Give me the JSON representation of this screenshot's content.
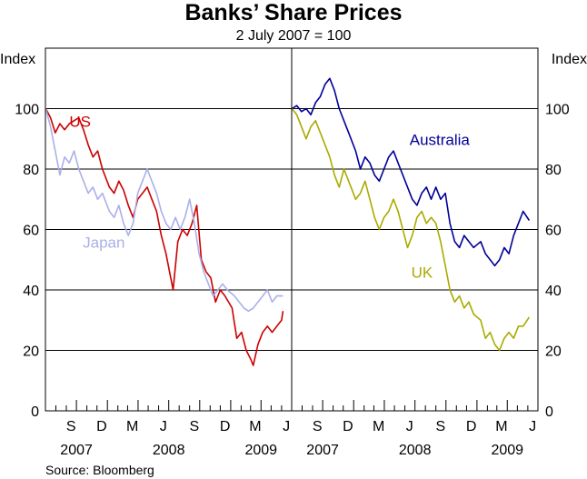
{
  "chart_data": {
    "type": "line",
    "title": "Banks’ Share Prices",
    "subtitle": "2 July 2007 = 100",
    "yaxis_label_left": "Index",
    "yaxis_label_right": "Index",
    "ylim": [
      0,
      120
    ],
    "yticks": [
      0,
      20,
      40,
      60,
      80,
      100
    ],
    "grid": true,
    "source": "Source: Bloomberg",
    "xlim": [
      "2007-07-01",
      "2009-07-01"
    ],
    "month_labels": [
      {
        "label": "S",
        "date": "2007-09-15"
      },
      {
        "label": "D",
        "date": "2007-12-15"
      },
      {
        "label": "M",
        "date": "2008-03-15"
      },
      {
        "label": "J",
        "date": "2008-06-15"
      },
      {
        "label": "S",
        "date": "2008-09-15"
      },
      {
        "label": "D",
        "date": "2008-12-15"
      },
      {
        "label": "M",
        "date": "2009-03-15"
      },
      {
        "label": "J",
        "date": "2009-06-15"
      }
    ],
    "year_labels": [
      {
        "label": "2007",
        "date": "2007-10-01"
      },
      {
        "label": "2008",
        "date": "2008-07-01"
      },
      {
        "label": "2009",
        "date": "2009-04-01"
      }
    ],
    "panels": [
      {
        "series": [
          {
            "name": "US",
            "color": "#cc0000",
            "label_anchor": {
              "date": "2007-09-10",
              "value": 94
            },
            "points": [
              [
                "2007-07-02",
                100
              ],
              [
                "2007-07-16",
                97
              ],
              [
                "2007-07-30",
                92
              ],
              [
                "2007-08-13",
                95
              ],
              [
                "2007-08-27",
                93
              ],
              [
                "2007-09-10",
                95
              ],
              [
                "2007-09-24",
                96
              ],
              [
                "2007-10-08",
                97
              ],
              [
                "2007-10-22",
                93
              ],
              [
                "2007-11-05",
                88
              ],
              [
                "2007-11-19",
                84
              ],
              [
                "2007-12-03",
                86
              ],
              [
                "2007-12-17",
                80
              ],
              [
                "2008-01-07",
                74
              ],
              [
                "2008-01-21",
                72
              ],
              [
                "2008-02-04",
                76
              ],
              [
                "2008-02-18",
                73
              ],
              [
                "2008-03-03",
                68
              ],
              [
                "2008-03-17",
                64
              ],
              [
                "2008-03-31",
                70
              ],
              [
                "2008-04-14",
                72
              ],
              [
                "2008-04-28",
                74
              ],
              [
                "2008-05-12",
                70
              ],
              [
                "2008-05-26",
                66
              ],
              [
                "2008-06-09",
                58
              ],
              [
                "2008-06-23",
                52
              ],
              [
                "2008-07-07",
                44
              ],
              [
                "2008-07-14",
                40
              ],
              [
                "2008-07-28",
                56
              ],
              [
                "2008-08-11",
                60
              ],
              [
                "2008-08-25",
                58
              ],
              [
                "2008-09-08",
                62
              ],
              [
                "2008-09-22",
                68
              ],
              [
                "2008-10-06",
                50
              ],
              [
                "2008-10-20",
                46
              ],
              [
                "2008-11-03",
                44
              ],
              [
                "2008-11-17",
                36
              ],
              [
                "2008-12-01",
                40
              ],
              [
                "2008-12-15",
                38
              ],
              [
                "2009-01-05",
                34
              ],
              [
                "2009-01-19",
                24
              ],
              [
                "2009-02-02",
                26
              ],
              [
                "2009-02-16",
                20
              ],
              [
                "2009-03-02",
                17
              ],
              [
                "2009-03-09",
                15
              ],
              [
                "2009-03-23",
                22
              ],
              [
                "2009-04-06",
                26
              ],
              [
                "2009-04-20",
                28
              ],
              [
                "2009-05-04",
                26
              ],
              [
                "2009-05-18",
                28
              ],
              [
                "2009-06-01",
                30
              ],
              [
                "2009-06-05",
                33
              ]
            ]
          },
          {
            "name": "Japan",
            "color": "#aab0e8",
            "label_anchor": {
              "date": "2007-10-20",
              "value": 54
            },
            "points": [
              [
                "2007-07-02",
                100
              ],
              [
                "2007-07-16",
                94
              ],
              [
                "2007-07-30",
                86
              ],
              [
                "2007-08-13",
                78
              ],
              [
                "2007-08-27",
                84
              ],
              [
                "2007-09-10",
                82
              ],
              [
                "2007-09-24",
                86
              ],
              [
                "2007-10-08",
                80
              ],
              [
                "2007-10-22",
                76
              ],
              [
                "2007-11-05",
                72
              ],
              [
                "2007-11-19",
                74
              ],
              [
                "2007-12-03",
                70
              ],
              [
                "2007-12-17",
                72
              ],
              [
                "2008-01-07",
                66
              ],
              [
                "2008-01-21",
                64
              ],
              [
                "2008-02-04",
                68
              ],
              [
                "2008-02-18",
                62
              ],
              [
                "2008-03-03",
                58
              ],
              [
                "2008-03-17",
                62
              ],
              [
                "2008-03-31",
                72
              ],
              [
                "2008-04-14",
                76
              ],
              [
                "2008-04-28",
                80
              ],
              [
                "2008-05-12",
                76
              ],
              [
                "2008-05-26",
                72
              ],
              [
                "2008-06-09",
                66
              ],
              [
                "2008-06-23",
                62
              ],
              [
                "2008-07-07",
                60
              ],
              [
                "2008-07-21",
                64
              ],
              [
                "2008-08-04",
                60
              ],
              [
                "2008-08-18",
                64
              ],
              [
                "2008-09-01",
                70
              ],
              [
                "2008-09-15",
                62
              ],
              [
                "2008-09-29",
                52
              ],
              [
                "2008-10-13",
                46
              ],
              [
                "2008-10-27",
                42
              ],
              [
                "2008-11-10",
                38
              ],
              [
                "2008-11-24",
                40
              ],
              [
                "2008-12-08",
                42
              ],
              [
                "2008-12-22",
                40
              ],
              [
                "2009-01-12",
                38
              ],
              [
                "2009-01-26",
                36
              ],
              [
                "2009-02-09",
                34
              ],
              [
                "2009-02-23",
                33
              ],
              [
                "2009-03-09",
                34
              ],
              [
                "2009-03-23",
                36
              ],
              [
                "2009-04-06",
                38
              ],
              [
                "2009-04-20",
                40
              ],
              [
                "2009-05-04",
                36
              ],
              [
                "2009-05-18",
                38
              ],
              [
                "2009-06-05",
                38
              ]
            ]
          }
        ]
      },
      {
        "series": [
          {
            "name": "Australia",
            "color": "#000099",
            "label_anchor": {
              "date": "2008-06-15",
              "value": 88
            },
            "points": [
              [
                "2007-07-02",
                100
              ],
              [
                "2007-07-16",
                101
              ],
              [
                "2007-07-30",
                99
              ],
              [
                "2007-08-13",
                100
              ],
              [
                "2007-08-27",
                98
              ],
              [
                "2007-09-10",
                102
              ],
              [
                "2007-09-24",
                104
              ],
              [
                "2007-10-08",
                108
              ],
              [
                "2007-10-22",
                110
              ],
              [
                "2007-11-05",
                106
              ],
              [
                "2007-11-19",
                100
              ],
              [
                "2007-12-03",
                96
              ],
              [
                "2007-12-17",
                92
              ],
              [
                "2008-01-07",
                86
              ],
              [
                "2008-01-21",
                80
              ],
              [
                "2008-02-04",
                84
              ],
              [
                "2008-02-18",
                82
              ],
              [
                "2008-03-03",
                78
              ],
              [
                "2008-03-17",
                76
              ],
              [
                "2008-03-31",
                80
              ],
              [
                "2008-04-14",
                84
              ],
              [
                "2008-04-28",
                86
              ],
              [
                "2008-05-12",
                82
              ],
              [
                "2008-05-26",
                78
              ],
              [
                "2008-06-09",
                74
              ],
              [
                "2008-06-23",
                70
              ],
              [
                "2008-07-07",
                68
              ],
              [
                "2008-07-21",
                72
              ],
              [
                "2008-08-04",
                74
              ],
              [
                "2008-08-18",
                70
              ],
              [
                "2008-09-01",
                74
              ],
              [
                "2008-09-15",
                70
              ],
              [
                "2008-09-29",
                72
              ],
              [
                "2008-10-13",
                62
              ],
              [
                "2008-10-27",
                56
              ],
              [
                "2008-11-10",
                54
              ],
              [
                "2008-11-24",
                58
              ],
              [
                "2008-12-08",
                56
              ],
              [
                "2008-12-22",
                54
              ],
              [
                "2009-01-12",
                56
              ],
              [
                "2009-01-26",
                52
              ],
              [
                "2009-02-09",
                50
              ],
              [
                "2009-02-23",
                48
              ],
              [
                "2009-03-09",
                50
              ],
              [
                "2009-03-23",
                54
              ],
              [
                "2009-04-06",
                52
              ],
              [
                "2009-04-20",
                58
              ],
              [
                "2009-05-04",
                62
              ],
              [
                "2009-05-18",
                66
              ],
              [
                "2009-06-05",
                63
              ]
            ]
          },
          {
            "name": "UK",
            "color": "#aaaa00",
            "label_anchor": {
              "date": "2008-06-20",
              "value": 44
            },
            "points": [
              [
                "2007-07-02",
                100
              ],
              [
                "2007-07-16",
                98
              ],
              [
                "2007-07-30",
                94
              ],
              [
                "2007-08-13",
                90
              ],
              [
                "2007-08-27",
                94
              ],
              [
                "2007-09-10",
                96
              ],
              [
                "2007-09-24",
                92
              ],
              [
                "2007-10-08",
                88
              ],
              [
                "2007-10-22",
                84
              ],
              [
                "2007-11-05",
                78
              ],
              [
                "2007-11-19",
                74
              ],
              [
                "2007-12-03",
                80
              ],
              [
                "2007-12-17",
                76
              ],
              [
                "2008-01-07",
                70
              ],
              [
                "2008-01-21",
                72
              ],
              [
                "2008-02-04",
                76
              ],
              [
                "2008-02-18",
                70
              ],
              [
                "2008-03-03",
                64
              ],
              [
                "2008-03-17",
                60
              ],
              [
                "2008-03-31",
                64
              ],
              [
                "2008-04-14",
                66
              ],
              [
                "2008-04-28",
                70
              ],
              [
                "2008-05-12",
                66
              ],
              [
                "2008-05-26",
                60
              ],
              [
                "2008-06-09",
                54
              ],
              [
                "2008-06-23",
                58
              ],
              [
                "2008-07-07",
                64
              ],
              [
                "2008-07-21",
                66
              ],
              [
                "2008-08-04",
                62
              ],
              [
                "2008-08-18",
                64
              ],
              [
                "2008-09-01",
                62
              ],
              [
                "2008-09-15",
                56
              ],
              [
                "2008-09-29",
                48
              ],
              [
                "2008-10-13",
                40
              ],
              [
                "2008-10-27",
                36
              ],
              [
                "2008-11-10",
                38
              ],
              [
                "2008-11-24",
                34
              ],
              [
                "2008-12-08",
                36
              ],
              [
                "2008-12-22",
                32
              ],
              [
                "2009-01-12",
                30
              ],
              [
                "2009-01-26",
                24
              ],
              [
                "2009-02-09",
                26
              ],
              [
                "2009-02-23",
                22
              ],
              [
                "2009-03-09",
                20
              ],
              [
                "2009-03-23",
                24
              ],
              [
                "2009-04-06",
                26
              ],
              [
                "2009-04-20",
                24
              ],
              [
                "2009-05-04",
                28
              ],
              [
                "2009-05-18",
                28
              ],
              [
                "2009-06-05",
                31
              ]
            ]
          }
        ]
      }
    ]
  }
}
